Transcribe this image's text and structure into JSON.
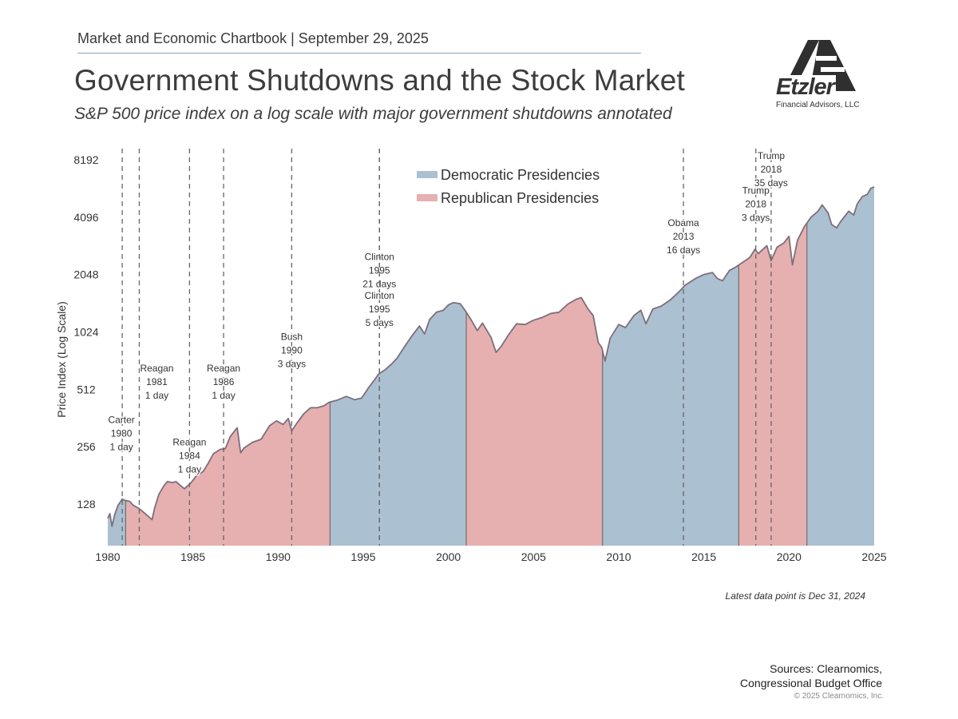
{
  "header": {
    "chartbook": "Market and Economic Chartbook | September 29, 2025",
    "title": "Government Shutdowns and the Stock Market",
    "subtitle": "S&P 500 price index on a log scale with major government shutdowns annotated"
  },
  "logo": {
    "name": "Etzler",
    "tagline": "Financial Advisors, LLC"
  },
  "footnote": "Latest data point is Dec 31, 2024",
  "sources": {
    "line1": "Sources: Clearnomics,",
    "line2": "Congressional Budget Office",
    "copyright": "© 2025 Clearnomics, Inc."
  },
  "colors": {
    "democratic": "#abc0d1",
    "republican": "#e6b0b0",
    "line": "#7d6f7a",
    "dashed": "#666666",
    "text": "#333333"
  },
  "chart_data": {
    "type": "area",
    "title": "Government Shutdowns and the Stock Market",
    "ylabel": "Price Index (Log Scale)",
    "xlabel": "",
    "yscale": "log2",
    "xlim": [
      1980,
      2025
    ],
    "ylim": [
      64,
      9000
    ],
    "yticks": [
      128,
      256,
      512,
      1024,
      2048,
      4096,
      8192
    ],
    "xticks": [
      1980,
      1985,
      1990,
      1995,
      2000,
      2005,
      2010,
      2015,
      2020,
      2025
    ],
    "legend": [
      {
        "name": "Democratic Presidencies",
        "color": "#abc0d1"
      },
      {
        "name": "Republican Presidencies",
        "color": "#e6b0b0"
      }
    ],
    "legend_position": "top-center",
    "presidencies": [
      {
        "start": 1980.0,
        "end": 1981.05,
        "party": "Democratic"
      },
      {
        "start": 1981.05,
        "end": 1993.05,
        "party": "Republican"
      },
      {
        "start": 1993.05,
        "end": 2001.05,
        "party": "Democratic"
      },
      {
        "start": 2001.05,
        "end": 2009.05,
        "party": "Republican"
      },
      {
        "start": 2009.05,
        "end": 2017.05,
        "party": "Democratic"
      },
      {
        "start": 2017.05,
        "end": 2021.05,
        "party": "Republican"
      },
      {
        "start": 2021.05,
        "end": 2025.0,
        "party": "Democratic"
      }
    ],
    "series": [
      {
        "name": "S&P 500",
        "points": [
          [
            1980.0,
            108
          ],
          [
            1980.12,
            114
          ],
          [
            1980.25,
            98
          ],
          [
            1980.4,
            112
          ],
          [
            1980.6,
            126
          ],
          [
            1980.85,
            136
          ],
          [
            1981.0,
            134
          ],
          [
            1981.3,
            132
          ],
          [
            1981.5,
            126
          ],
          [
            1981.8,
            122
          ],
          [
            1982.0,
            118
          ],
          [
            1982.3,
            112
          ],
          [
            1982.6,
            106
          ],
          [
            1982.75,
            122
          ],
          [
            1983.0,
            144
          ],
          [
            1983.3,
            160
          ],
          [
            1983.5,
            168
          ],
          [
            1983.8,
            166
          ],
          [
            1984.0,
            168
          ],
          [
            1984.5,
            154
          ],
          [
            1984.9,
            166
          ],
          [
            1985.2,
            180
          ],
          [
            1985.6,
            190
          ],
          [
            1985.9,
            210
          ],
          [
            1986.2,
            235
          ],
          [
            1986.6,
            248
          ],
          [
            1986.9,
            250
          ],
          [
            1987.2,
            290
          ],
          [
            1987.6,
            322
          ],
          [
            1987.8,
            238
          ],
          [
            1988.0,
            252
          ],
          [
            1988.5,
            270
          ],
          [
            1989.0,
            280
          ],
          [
            1989.5,
            330
          ],
          [
            1989.9,
            350
          ],
          [
            1990.3,
            335
          ],
          [
            1990.6,
            360
          ],
          [
            1990.8,
            310
          ],
          [
            1991.1,
            340
          ],
          [
            1991.5,
            380
          ],
          [
            1991.9,
            410
          ],
          [
            1992.3,
            410
          ],
          [
            1992.7,
            420
          ],
          [
            1993.0,
            438
          ],
          [
            1993.5,
            450
          ],
          [
            1994.0,
            470
          ],
          [
            1994.5,
            452
          ],
          [
            1994.9,
            460
          ],
          [
            1995.3,
            520
          ],
          [
            1995.7,
            580
          ],
          [
            1995.9,
            615
          ],
          [
            1996.3,
            650
          ],
          [
            1996.7,
            700
          ],
          [
            1997.0,
            750
          ],
          [
            1997.4,
            850
          ],
          [
            1997.8,
            960
          ],
          [
            1998.3,
            1100
          ],
          [
            1998.6,
            1000
          ],
          [
            1998.9,
            1190
          ],
          [
            1999.3,
            1300
          ],
          [
            1999.7,
            1330
          ],
          [
            2000.0,
            1420
          ],
          [
            2000.3,
            1460
          ],
          [
            2000.7,
            1440
          ],
          [
            2001.0,
            1320
          ],
          [
            2001.3,
            1200
          ],
          [
            2001.7,
            1040
          ],
          [
            2002.0,
            1140
          ],
          [
            2002.5,
            960
          ],
          [
            2002.8,
            800
          ],
          [
            2003.1,
            860
          ],
          [
            2003.5,
            980
          ],
          [
            2004.0,
            1130
          ],
          [
            2004.5,
            1120
          ],
          [
            2005.0,
            1180
          ],
          [
            2005.5,
            1220
          ],
          [
            2006.0,
            1280
          ],
          [
            2006.5,
            1300
          ],
          [
            2007.0,
            1430
          ],
          [
            2007.5,
            1520
          ],
          [
            2007.8,
            1550
          ],
          [
            2008.2,
            1350
          ],
          [
            2008.5,
            1250
          ],
          [
            2008.8,
            900
          ],
          [
            2009.0,
            850
          ],
          [
            2009.2,
            720
          ],
          [
            2009.5,
            950
          ],
          [
            2010.0,
            1120
          ],
          [
            2010.4,
            1080
          ],
          [
            2010.9,
            1250
          ],
          [
            2011.3,
            1330
          ],
          [
            2011.6,
            1130
          ],
          [
            2012.0,
            1350
          ],
          [
            2012.5,
            1400
          ],
          [
            2013.0,
            1500
          ],
          [
            2013.5,
            1650
          ],
          [
            2013.9,
            1800
          ],
          [
            2014.5,
            1950
          ],
          [
            2015.0,
            2050
          ],
          [
            2015.5,
            2100
          ],
          [
            2015.8,
            1950
          ],
          [
            2016.1,
            1900
          ],
          [
            2016.5,
            2150
          ],
          [
            2016.9,
            2250
          ],
          [
            2017.3,
            2380
          ],
          [
            2017.7,
            2520
          ],
          [
            2018.0,
            2780
          ],
          [
            2018.2,
            2640
          ],
          [
            2018.7,
            2900
          ],
          [
            2018.95,
            2420
          ],
          [
            2019.3,
            2850
          ],
          [
            2019.7,
            3000
          ],
          [
            2020.0,
            3250
          ],
          [
            2020.2,
            2300
          ],
          [
            2020.5,
            3100
          ],
          [
            2020.9,
            3650
          ],
          [
            2021.3,
            4100
          ],
          [
            2021.7,
            4400
          ],
          [
            2021.95,
            4750
          ],
          [
            2022.3,
            4300
          ],
          [
            2022.5,
            3750
          ],
          [
            2022.8,
            3600
          ],
          [
            2023.0,
            3850
          ],
          [
            2023.5,
            4400
          ],
          [
            2023.8,
            4200
          ],
          [
            2024.0,
            4800
          ],
          [
            2024.3,
            5250
          ],
          [
            2024.6,
            5400
          ],
          [
            2024.8,
            5800
          ],
          [
            2025.0,
            5900
          ]
        ]
      }
    ],
    "shutdowns": [
      {
        "x": 1980.85,
        "label": [
          "Carter",
          "1980",
          "1 day"
        ],
        "label_y": 300
      },
      {
        "x": 1981.85,
        "label": [
          "Reagan",
          "1981",
          "1 day"
        ],
        "label_y": 560
      },
      {
        "x": 1984.8,
        "label": [
          "Reagan",
          "1984",
          "1 day"
        ],
        "label_y": 230
      },
      {
        "x": 1986.8,
        "label": [
          "Reagan",
          "1986",
          "1 day"
        ],
        "label_y": 560
      },
      {
        "x": 1990.8,
        "label": [
          "Bush",
          "1990",
          "3 days"
        ],
        "label_y": 820
      },
      {
        "x": 1995.95,
        "label": [
          "Clinton",
          "1995",
          "21 days"
        ],
        "label_y": 2150
      },
      {
        "x": 1995.95,
        "label": [
          "Clinton",
          "1995",
          "5 days"
        ],
        "label_y": 1350
      },
      {
        "x": 2013.8,
        "label": [
          "Obama",
          "2013",
          "16 days"
        ],
        "label_y": 3250
      },
      {
        "x": 2018.05,
        "label": [
          "Trump",
          "2018",
          "3 days"
        ],
        "label_y": 4800
      },
      {
        "x": 2018.95,
        "label": [
          "Trump",
          "2018",
          "35 days"
        ],
        "label_y": 7300
      }
    ]
  }
}
